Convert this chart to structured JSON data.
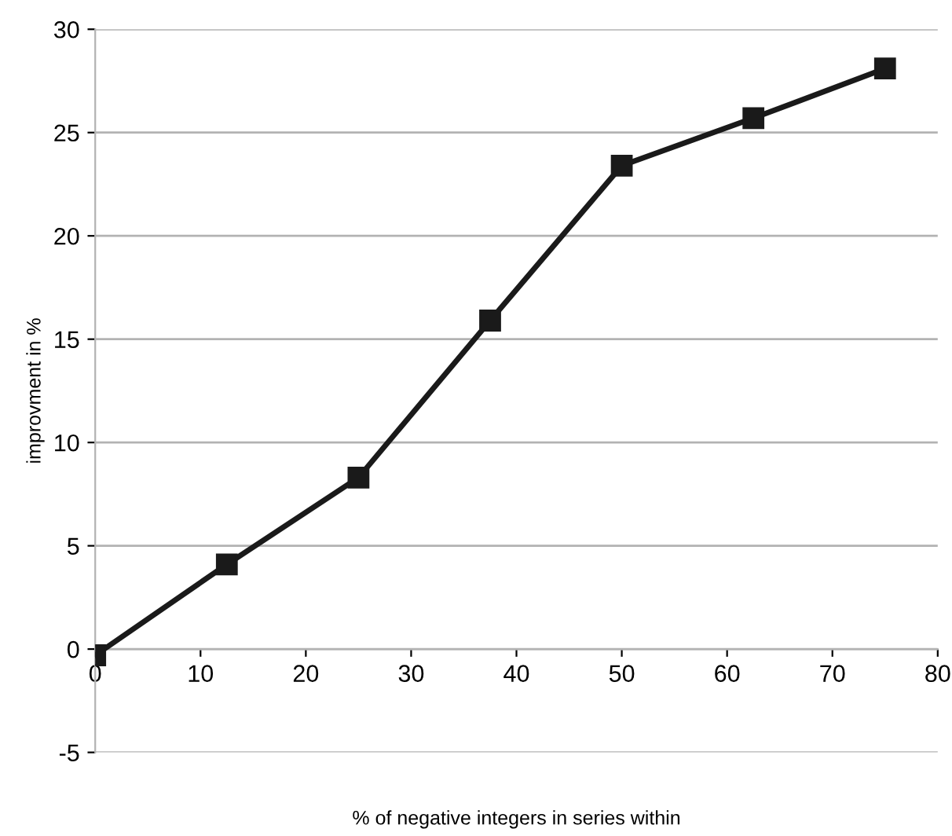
{
  "chart_data": {
    "type": "line",
    "xlabel": "% of negative integers in series within",
    "ylabel": "improvment in %",
    "x": [
      0,
      12.5,
      25,
      37.5,
      50,
      62.5,
      75
    ],
    "series": [
      {
        "color": "#1a1a1a",
        "values": [
          -0.3,
          4.1,
          8.3,
          15.9,
          23.4,
          25.7,
          28.1
        ]
      }
    ],
    "xlim": [
      0,
      80
    ],
    "xticks": [
      0,
      10,
      20,
      30,
      40,
      50,
      60,
      70,
      80
    ],
    "ylim": [
      -5,
      30
    ],
    "yticks": [
      -5,
      0,
      5,
      10,
      15,
      20,
      25,
      30
    ],
    "grid": "y",
    "marker": "square",
    "line_style": "solid",
    "legend": false
  }
}
